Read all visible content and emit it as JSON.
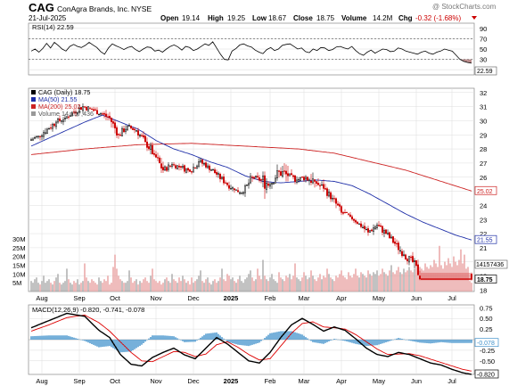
{
  "header": {
    "symbol": "CAG",
    "name": "ConAgra Brands, Inc.",
    "exchange": "NYSE",
    "date": "21-Jul-2025",
    "watermark": "@ StockCharts.com",
    "open_label": "Open",
    "open": "19.14",
    "high_label": "High",
    "high": "19.25",
    "low_label": "Low",
    "low": "18.67",
    "close_label": "Close",
    "close": "18.75",
    "volume_label": "Volume",
    "volume": "14.2M",
    "chg_label": "Chg",
    "chg": "-0.32 (-1.68%)"
  },
  "colors": {
    "up": "#000000",
    "down": "#cc0000",
    "ma50": "#1f2fa8",
    "ma200": "#cc2222",
    "volume_up": "#a8a8a8",
    "volume_down": "#e8a0a0",
    "macd_line": "#000000",
    "macd_signal": "#dd0000",
    "histogram": "#3b8ec9",
    "rsi_fill": "#b98a8a",
    "grid": "#dddddd"
  },
  "chart_data": [
    {
      "type": "line",
      "panel": "rsi",
      "title": "RSI(14) 22.59",
      "ylim": [
        0,
        100
      ],
      "y_ticks": [
        "10",
        "30",
        "50",
        "70",
        "90"
      ],
      "reference_lines": [
        30,
        70
      ],
      "badge": "22.59",
      "values": [
        46,
        50,
        44,
        51,
        61,
        52,
        63,
        57,
        50,
        46,
        55,
        59,
        55,
        53,
        57,
        63,
        58,
        53,
        45,
        40,
        52,
        60,
        56,
        53,
        49,
        53,
        55,
        49,
        45,
        50,
        54,
        53,
        46,
        48,
        44,
        50,
        55,
        58,
        54,
        48,
        55,
        53,
        47,
        50,
        55,
        60,
        57,
        64,
        52,
        40,
        30,
        29,
        46,
        51,
        58,
        60,
        56,
        54,
        48,
        44,
        41,
        49,
        53,
        47,
        50,
        57,
        59,
        60,
        55,
        50,
        52,
        45,
        43,
        50,
        47,
        53,
        52,
        47,
        49,
        54,
        55,
        52,
        50,
        55,
        47,
        41,
        38,
        44,
        48,
        42,
        46,
        50,
        49,
        45,
        46,
        52,
        50,
        46,
        44,
        42,
        40,
        44,
        46,
        42,
        40,
        44,
        46,
        50,
        48,
        46,
        38,
        30,
        26,
        24,
        22.59
      ]
    },
    {
      "type": "candlestick",
      "panel": "price",
      "legend": [
        {
          "label": "CAG (Daily) 18.75",
          "color": "#000000"
        },
        {
          "label": "MA(50) 21.55",
          "color": "#1f2fa8"
        },
        {
          "label": "MA(200) 25.02",
          "color": "#cc2222"
        },
        {
          "label": "Volume 14,157,436",
          "color": "#999999"
        }
      ],
      "ylim": [
        17.9,
        32.3
      ],
      "y_ticks": [
        "18",
        "19",
        "20",
        "21",
        "22",
        "23",
        "24",
        "25",
        "26",
        "27",
        "28",
        "29",
        "30",
        "31",
        "32"
      ],
      "x_labels": [
        {
          "label": "Aug",
          "index": 6
        },
        {
          "label": "Sep",
          "index": 27
        },
        {
          "label": "Oct",
          "index": 47
        },
        {
          "label": "Nov",
          "index": 70
        },
        {
          "label": "Dec",
          "index": 91
        },
        {
          "label": "2025",
          "index": 112
        },
        {
          "label": "Feb",
          "index": 134
        },
        {
          "label": "Mar",
          "index": 153
        },
        {
          "label": "Apr",
          "index": 174
        },
        {
          "label": "May",
          "index": 195
        },
        {
          "label": "Jun",
          "index": 216
        },
        {
          "label": "Jul",
          "index": 236
        }
      ],
      "weekly_ohlc": [
        [
          28.6,
          29.1,
          28.1,
          28.9
        ],
        [
          28.9,
          29.9,
          28.6,
          29.4
        ],
        [
          29.4,
          30.1,
          28.9,
          29.9
        ],
        [
          29.9,
          30.6,
          29.5,
          30.2
        ],
        [
          30.2,
          30.9,
          29.9,
          30.6
        ],
        [
          30.6,
          31.3,
          30.2,
          31.0
        ],
        [
          31.0,
          31.5,
          30.4,
          30.8
        ],
        [
          30.8,
          31.2,
          30.2,
          30.5
        ],
        [
          30.5,
          31.0,
          29.8,
          30.2
        ],
        [
          30.2,
          30.4,
          28.7,
          29.0
        ],
        [
          29.0,
          29.9,
          28.6,
          29.6
        ],
        [
          29.6,
          29.9,
          28.9,
          29.3
        ],
        [
          29.3,
          29.5,
          28.2,
          28.5
        ],
        [
          28.5,
          28.9,
          27.2,
          27.6
        ],
        [
          27.6,
          27.9,
          26.1,
          26.5
        ],
        [
          26.5,
          27.2,
          26.0,
          26.9
        ],
        [
          26.9,
          27.3,
          26.3,
          26.7
        ],
        [
          26.7,
          27.0,
          26.0,
          26.4
        ],
        [
          26.4,
          27.4,
          26.2,
          27.1
        ],
        [
          27.1,
          27.5,
          26.4,
          26.8
        ],
        [
          26.8,
          27.0,
          25.9,
          26.2
        ],
        [
          26.2,
          26.4,
          25.3,
          25.6
        ],
        [
          25.6,
          25.9,
          24.8,
          25.1
        ],
        [
          25.1,
          25.4,
          24.5,
          24.9
        ],
        [
          24.9,
          26.3,
          24.6,
          26.0
        ],
        [
          26.0,
          26.5,
          25.4,
          25.8
        ],
        [
          25.8,
          26.4,
          23.4,
          25.5
        ],
        [
          25.5,
          27.0,
          25.1,
          26.4
        ],
        [
          26.4,
          28.2,
          25.7,
          26.1
        ],
        [
          26.1,
          26.7,
          25.5,
          25.8
        ],
        [
          25.8,
          26.5,
          25.3,
          26.0
        ],
        [
          26.0,
          27.3,
          25.2,
          25.7
        ],
        [
          25.7,
          26.4,
          24.9,
          25.2
        ],
        [
          25.2,
          25.6,
          24.2,
          24.5
        ],
        [
          24.5,
          24.8,
          23.2,
          23.5
        ],
        [
          23.5,
          23.9,
          22.9,
          23.2
        ],
        [
          23.2,
          23.4,
          22.5,
          22.7
        ],
        [
          22.7,
          22.9,
          21.8,
          22.1
        ],
        [
          22.1,
          23.0,
          21.9,
          22.6
        ],
        [
          22.6,
          22.9,
          21.7,
          22.0
        ],
        [
          22.0,
          22.3,
          21.0,
          21.3
        ],
        [
          21.3,
          21.6,
          20.3,
          20.5
        ],
        [
          20.5,
          21.0,
          19.6,
          20.0
        ],
        [
          20.0,
          20.6,
          18.7,
          18.75
        ]
      ],
      "ma50_anchors": [
        [
          0,
          28.2
        ],
        [
          30,
          29.9
        ],
        [
          40,
          30.4
        ],
        [
          50,
          29.9
        ],
        [
          60,
          29.4
        ],
        [
          70,
          28.6
        ],
        [
          80,
          28.0
        ],
        [
          90,
          27.6
        ],
        [
          100,
          27.1
        ],
        [
          110,
          26.7
        ],
        [
          120,
          26.1
        ],
        [
          130,
          25.7
        ],
        [
          140,
          25.6
        ],
        [
          150,
          25.7
        ],
        [
          160,
          25.8
        ],
        [
          170,
          25.7
        ],
        [
          180,
          25.4
        ],
        [
          190,
          24.8
        ],
        [
          200,
          24.1
        ],
        [
          210,
          23.4
        ],
        [
          220,
          22.8
        ],
        [
          230,
          22.3
        ],
        [
          238,
          21.9
        ],
        [
          247,
          21.55
        ]
      ],
      "ma200_anchors": [
        [
          0,
          27.6
        ],
        [
          30,
          28.0
        ],
        [
          60,
          28.3
        ],
        [
          90,
          28.4
        ],
        [
          120,
          28.2
        ],
        [
          150,
          28.0
        ],
        [
          170,
          27.7
        ],
        [
          190,
          27.1
        ],
        [
          210,
          26.5
        ],
        [
          230,
          25.7
        ],
        [
          247,
          25.02
        ]
      ],
      "badges": [
        {
          "value": "25.02",
          "color": "#cc2222"
        },
        {
          "value": "21.55",
          "color": "#1f2fa8"
        },
        {
          "value": "18.75",
          "color": "#000000"
        }
      ]
    },
    {
      "type": "bar",
      "panel": "volume",
      "ylim": [
        0,
        33000000
      ],
      "y_ticks": [
        "5M",
        "10M",
        "15M",
        "20M",
        "25M",
        "30M"
      ],
      "last_value": "14157436",
      "badge": "14157436",
      "daily_volume_sample": [
        6,
        5,
        7,
        8,
        5,
        4,
        6,
        9,
        5,
        6,
        7,
        5,
        4,
        6,
        8,
        10,
        5,
        4,
        5,
        6,
        13,
        7,
        5,
        4,
        6,
        5,
        7,
        4,
        5,
        6,
        16,
        8,
        6,
        5,
        7,
        6,
        5,
        4,
        8,
        6,
        5,
        7,
        6,
        9,
        4,
        5,
        14,
        21,
        13,
        9,
        7,
        6,
        5,
        5,
        6,
        12,
        8,
        5,
        6,
        7,
        4,
        6,
        5,
        7,
        8,
        6,
        5,
        9,
        13,
        7,
        6,
        5,
        6,
        4,
        5,
        7,
        8,
        6,
        5,
        10,
        7,
        6,
        5,
        8,
        6,
        9,
        7,
        5,
        6,
        4,
        8,
        5,
        6,
        7,
        9,
        12,
        6,
        5,
        7,
        8,
        5,
        4,
        6,
        7,
        5,
        6,
        8,
        13,
        7,
        6,
        10,
        9,
        7,
        8,
        6,
        5,
        7,
        9,
        6,
        5,
        7,
        8,
        10,
        12,
        8,
        6,
        7,
        13,
        9,
        7,
        18,
        9,
        7,
        6,
        8,
        10,
        7,
        6,
        5,
        11,
        8,
        7,
        6,
        9,
        8,
        10,
        7,
        9,
        16,
        8,
        7,
        6,
        8,
        11,
        9,
        7,
        8,
        12,
        9,
        7,
        6,
        8,
        10,
        7,
        9,
        8,
        13,
        10,
        8,
        7,
        6,
        9,
        8,
        10,
        12,
        9,
        8,
        7,
        11,
        9,
        8,
        10,
        13,
        9,
        8,
        11,
        10,
        9,
        8,
        12,
        10,
        9,
        11,
        10,
        12,
        9,
        10,
        13,
        11,
        10,
        9,
        12,
        15,
        11,
        10,
        12,
        14,
        11,
        10,
        13,
        11,
        12,
        14,
        12,
        11,
        13,
        15,
        12,
        14,
        13,
        12,
        16,
        14,
        13,
        15,
        14,
        18,
        16,
        14,
        26,
        15,
        13,
        17,
        15,
        19,
        16,
        14,
        20,
        17,
        15,
        18,
        24,
        16,
        21,
        13,
        14
      ]
    },
    {
      "type": "line",
      "panel": "macd",
      "title": "MACD(12,26,9) -0.820, -0.741, -0.078",
      "ylim": [
        -0.82,
        0.82
      ],
      "y_ticks": [
        "0.75",
        "0.50",
        "0.25",
        "-0.25",
        "-0.50"
      ],
      "badges": [
        {
          "value": "-0.078",
          "color": "#3b8ec9"
        },
        {
          "value": "-0.820",
          "color": "#000000"
        }
      ],
      "macd_anchors": [
        [
          0,
          0.28
        ],
        [
          10,
          0.45
        ],
        [
          20,
          0.62
        ],
        [
          30,
          0.55
        ],
        [
          38,
          0.22
        ],
        [
          44,
          0.05
        ],
        [
          50,
          -0.35
        ],
        [
          56,
          -0.58
        ],
        [
          62,
          -0.62
        ],
        [
          68,
          -0.42
        ],
        [
          74,
          -0.3
        ],
        [
          80,
          -0.2
        ],
        [
          86,
          -0.36
        ],
        [
          92,
          -0.45
        ],
        [
          98,
          -0.2
        ],
        [
          104,
          0.05
        ],
        [
          110,
          -0.1
        ],
        [
          116,
          -0.3
        ],
        [
          122,
          -0.5
        ],
        [
          128,
          -0.55
        ],
        [
          134,
          -0.3
        ],
        [
          140,
          0.05
        ],
        [
          146,
          0.35
        ],
        [
          152,
          0.5
        ],
        [
          158,
          0.36
        ],
        [
          164,
          0.2
        ],
        [
          170,
          0.3
        ],
        [
          176,
          0.22
        ],
        [
          182,
          0.02
        ],
        [
          188,
          -0.2
        ],
        [
          194,
          -0.35
        ],
        [
          200,
          -0.4
        ],
        [
          206,
          -0.3
        ],
        [
          212,
          -0.35
        ],
        [
          218,
          -0.45
        ],
        [
          224,
          -0.55
        ],
        [
          230,
          -0.6
        ],
        [
          236,
          -0.7
        ],
        [
          242,
          -0.78
        ],
        [
          247,
          -0.82
        ]
      ],
      "signal_anchors": [
        [
          0,
          0.2
        ],
        [
          10,
          0.35
        ],
        [
          20,
          0.52
        ],
        [
          30,
          0.58
        ],
        [
          38,
          0.4
        ],
        [
          44,
          0.2
        ],
        [
          50,
          -0.05
        ],
        [
          56,
          -0.3
        ],
        [
          62,
          -0.5
        ],
        [
          68,
          -0.52
        ],
        [
          74,
          -0.4
        ],
        [
          80,
          -0.28
        ],
        [
          86,
          -0.3
        ],
        [
          92,
          -0.4
        ],
        [
          98,
          -0.34
        ],
        [
          104,
          -0.12
        ],
        [
          110,
          -0.05
        ],
        [
          116,
          -0.18
        ],
        [
          122,
          -0.35
        ],
        [
          128,
          -0.48
        ],
        [
          134,
          -0.45
        ],
        [
          140,
          -0.15
        ],
        [
          146,
          0.15
        ],
        [
          152,
          0.38
        ],
        [
          158,
          0.42
        ],
        [
          164,
          0.3
        ],
        [
          170,
          0.28
        ],
        [
          176,
          0.25
        ],
        [
          182,
          0.12
        ],
        [
          188,
          -0.05
        ],
        [
          194,
          -0.22
        ],
        [
          200,
          -0.35
        ],
        [
          206,
          -0.34
        ],
        [
          212,
          -0.33
        ],
        [
          218,
          -0.38
        ],
        [
          224,
          -0.46
        ],
        [
          230,
          -0.54
        ],
        [
          236,
          -0.62
        ],
        [
          242,
          -0.7
        ],
        [
          247,
          -0.741
        ]
      ]
    }
  ]
}
